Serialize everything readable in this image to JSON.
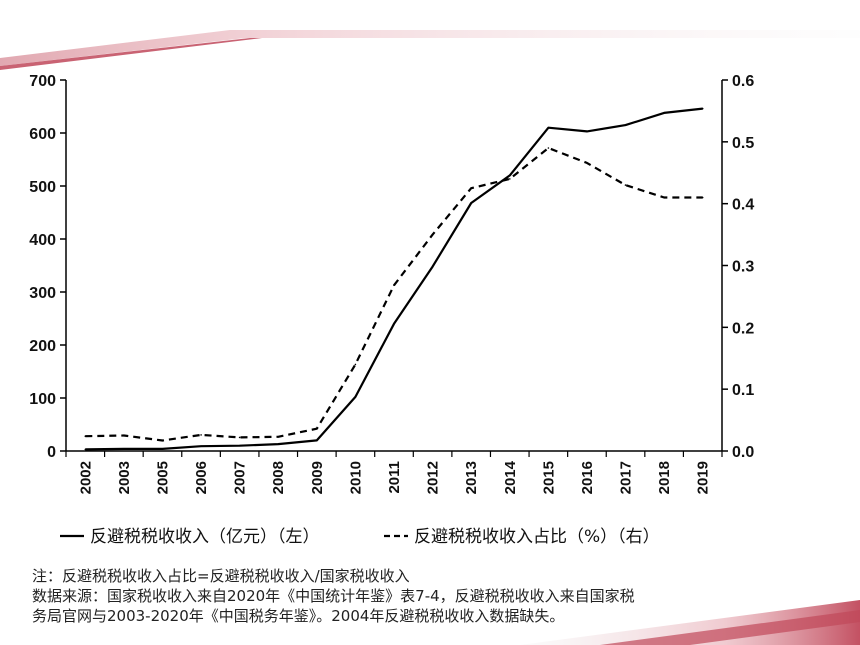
{
  "chart_data": {
    "type": "line",
    "title": "",
    "categories": [
      "2002",
      "2003",
      "2005",
      "2006",
      "2007",
      "2008",
      "2009",
      "2010",
      "2011",
      "2012",
      "2013",
      "2014",
      "2015",
      "2016",
      "2017",
      "2018",
      "2019"
    ],
    "series": [
      {
        "name": "反避税税收收入（亿元）（左）",
        "axis": "left",
        "style": "solid",
        "values": [
          3,
          4,
          4,
          9,
          10,
          13,
          20,
          102,
          240,
          348,
          468,
          520,
          610,
          603,
          615,
          638,
          646
        ]
      },
      {
        "name": "反避税税收收入占比（%）（右）",
        "axis": "right",
        "style": "dashed",
        "values": [
          0.024,
          0.025,
          0.017,
          0.026,
          0.022,
          0.023,
          0.036,
          0.14,
          0.268,
          0.35,
          0.425,
          0.44,
          0.49,
          0.466,
          0.43,
          0.41,
          0.41
        ]
      }
    ],
    "y_left": {
      "min": 0,
      "max": 700,
      "ticks": [
        "0",
        "100",
        "200",
        "300",
        "400",
        "500",
        "600",
        "700"
      ]
    },
    "y_right": {
      "min": 0,
      "max": 0.6,
      "ticks": [
        "0.0",
        "0.1",
        "0.2",
        "0.3",
        "0.4",
        "0.5",
        "0.6"
      ]
    },
    "legend_position": "bottom",
    "grid": false
  },
  "notes": {
    "line1": "注：反避税税收收入占比=反避税税收收入/国家税收收入",
    "line2": "数据来源：国家税收收入来自2020年《中国统计年鉴》表7-4，反避税税收收入来自国家税",
    "line3": "务局官网与2003-2020年《中国税务年鉴》。2004年反避税税收收入数据缺失。"
  },
  "colors": {
    "line": "#000000",
    "accent": "#c0485a"
  }
}
